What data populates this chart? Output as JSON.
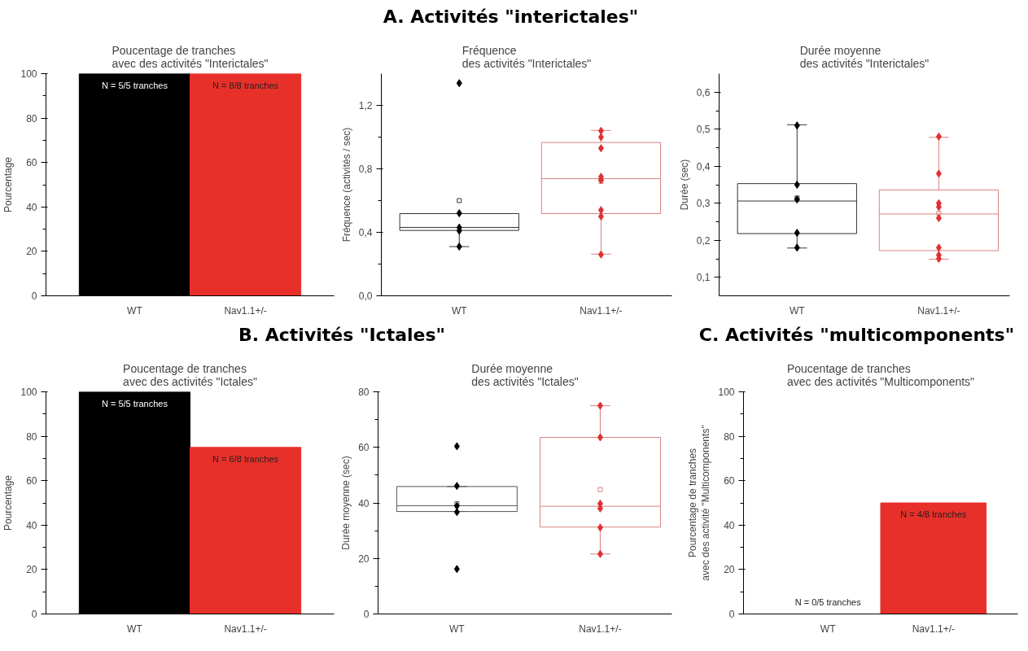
{
  "chart_data": [
    {
      "type": "bar",
      "annotations": [
        "A.  Activités \"interictales\""
      ],
      "title": "Poucentage de tranches\navec des activités \"Interictales\"",
      "ylabel": "Pourcentage",
      "categories": [
        "WT",
        "Nav1.1+/-"
      ],
      "values": [
        100,
        100
      ],
      "colors": [
        "#000000",
        "#e8302a"
      ],
      "value_labels": [
        "N = 5/5 tranches",
        "N = 8/8 tranches"
      ],
      "ylim": [
        0,
        100
      ],
      "yticks": [
        0,
        20,
        40,
        60,
        80,
        100
      ]
    },
    {
      "type": "box",
      "title": "Fréquence\ndes activités \"Interictales\"",
      "ylabel": "Fréquence (activités / sec)",
      "categories": [
        "WT",
        "Nav1.1+/-"
      ],
      "ylim": [
        0,
        1.4
      ],
      "yticks": [
        {
          "value": 0,
          "label": "0,0"
        },
        {
          "value": 0.4,
          "label": "0,4"
        },
        {
          "value": 0.8,
          "label": "0,8"
        },
        {
          "value": 1.2,
          "label": "1,2"
        }
      ],
      "series": [
        {
          "type": "box",
          "colors": [
            "#333333",
            "#d98080"
          ],
          "boxes": [
            {
              "low": 0.31,
              "q1": 0.412,
              "median": 0.431,
              "q3": 0.518,
              "high": 0.518,
              "mean": 0.6
            },
            {
              "low": 0.263,
              "q1": 0.518,
              "median": 0.738,
              "q3": 0.966,
              "high": 1.042,
              "mean": 0.72
            }
          ]
        },
        {
          "type": "scatter",
          "marker": "diamond",
          "color": "#000000",
          "x": [
            "WT",
            "WT",
            "WT",
            "WT",
            "WT"
          ],
          "values": [
            1.34,
            0.52,
            0.41,
            0.31,
            0.43
          ]
        },
        {
          "type": "scatter",
          "marker": "diamond",
          "color": "#e03030",
          "x": [
            "Nav1.1+/-",
            "Nav1.1+/-",
            "Nav1.1+/-",
            "Nav1.1+/-",
            "Nav1.1+/-",
            "Nav1.1+/-",
            "Nav1.1+/-",
            "Nav1.1+/-"
          ],
          "values": [
            1.04,
            0.93,
            1.0,
            0.75,
            0.73,
            0.5,
            0.54,
            0.26
          ]
        }
      ]
    },
    {
      "type": "box",
      "title": "Durée moyenne\ndes activités \"Interictales\"",
      "ylabel": "Durée (sec)",
      "categories": [
        "WT",
        "Nav1.1+/-"
      ],
      "ylim": [
        0.05,
        0.65
      ],
      "yticks": [
        {
          "value": 0.1,
          "label": "0,1"
        },
        {
          "value": 0.2,
          "label": "0,2"
        },
        {
          "value": 0.3,
          "label": "0,3"
        },
        {
          "value": 0.4,
          "label": "0,4"
        },
        {
          "value": 0.5,
          "label": "0,5"
        },
        {
          "value": 0.6,
          "label": "0,6"
        }
      ],
      "series": [
        {
          "type": "box",
          "colors": [
            "#333333",
            "#d98080"
          ],
          "boxes": [
            {
              "low": 0.179,
              "q1": 0.218,
              "median": 0.306,
              "q3": 0.353,
              "high": 0.512,
              "mean": 0.314
            },
            {
              "low": 0.149,
              "q1": 0.172,
              "median": 0.271,
              "q3": 0.336,
              "high": 0.478,
              "mean": 0.273
            }
          ]
        },
        {
          "type": "scatter",
          "marker": "diamond",
          "color": "#000000",
          "x": [
            "WT",
            "WT",
            "WT",
            "WT",
            "WT"
          ],
          "values": [
            0.51,
            0.35,
            0.31,
            0.22,
            0.18
          ]
        },
        {
          "type": "scatter",
          "marker": "diamond",
          "color": "#e03030",
          "x": [
            "Nav1.1+/-",
            "Nav1.1+/-",
            "Nav1.1+/-",
            "Nav1.1+/-",
            "Nav1.1+/-",
            "Nav1.1+/-",
            "Nav1.1+/-",
            "Nav1.1+/-"
          ],
          "values": [
            0.48,
            0.38,
            0.3,
            0.29,
            0.26,
            0.16,
            0.18,
            0.15
          ]
        }
      ]
    },
    {
      "type": "bar",
      "annotations": [
        "B.  Activités \"Ictales\""
      ],
      "title": "Poucentage de tranches\navec des activités \"Ictales\"",
      "ylabel": "Pourcentage",
      "categories": [
        "WT",
        "Nav1.1+/-"
      ],
      "values": [
        100,
        75
      ],
      "colors": [
        "#000000",
        "#e8302a"
      ],
      "value_labels": [
        "N = 5/5 tranches",
        "N = 6/8 tranches"
      ],
      "ylim": [
        0,
        100
      ],
      "yticks": [
        0,
        20,
        40,
        60,
        80,
        100
      ]
    },
    {
      "type": "box",
      "title": "Durée moyenne\ndes activités \"Ictales\"",
      "ylabel": "Durée moyenne (sec)",
      "categories": [
        "WT",
        "Nav1.1+/-"
      ],
      "ylim": [
        0,
        80
      ],
      "yticks": [
        0,
        20,
        40,
        60,
        80
      ],
      "series": [
        {
          "type": "box",
          "colors": [
            "#555555",
            "#d98080"
          ],
          "boxes": [
            {
              "low": 36.9,
              "q1": 36.9,
              "median": 39.0,
              "q3": 45.9,
              "high": 45.9,
              "mean": 39.7
            },
            {
              "low": 21.6,
              "q1": 31.3,
              "median": 38.8,
              "q3": 63.6,
              "high": 75,
              "mean": 44.8
            }
          ]
        },
        {
          "type": "scatter",
          "marker": "diamond",
          "color": "#000000",
          "x": [
            "WT",
            "WT",
            "WT",
            "WT",
            "WT"
          ],
          "values": [
            60.4,
            46.1,
            36.7,
            38.9,
            16.2
          ]
        },
        {
          "type": "scatter",
          "marker": "diamond",
          "color": "#e03030",
          "x": [
            "Nav1.1+/-",
            "Nav1.1+/-",
            "Nav1.1+/-",
            "Nav1.1+/-",
            "Nav1.1+/-",
            "Nav1.1+/-"
          ],
          "values": [
            75,
            63.6,
            39.7,
            38,
            31.1,
            21.6
          ]
        }
      ]
    },
    {
      "type": "bar",
      "annotations": [
        "C.  Activités \"multicomponents\""
      ],
      "title": "Poucentage de tranches\navec des activités \"Multicomponents\"",
      "ylabel": "Pourcentage de tranches\navec des activité \"Multicomponents\"",
      "categories": [
        "WT",
        "Nav1.1+/-"
      ],
      "values": [
        0,
        50
      ],
      "colors": [
        "#000000",
        "#e8302a"
      ],
      "value_labels": [
        "N = 0/5 tranches",
        "N = 4/8 tranches"
      ],
      "ylim": [
        0,
        100
      ],
      "yticks": [
        0,
        20,
        40,
        60,
        80,
        100
      ]
    }
  ]
}
